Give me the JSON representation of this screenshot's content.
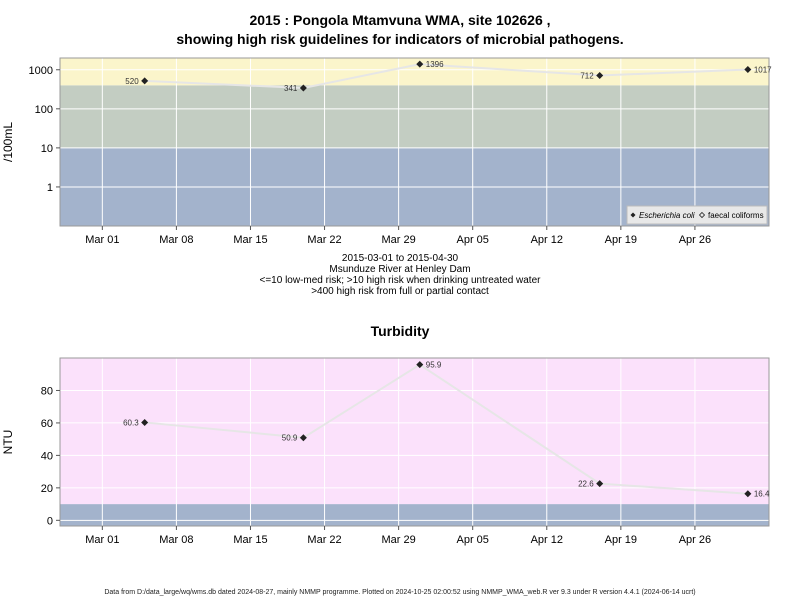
{
  "page": {
    "title_line1": "2015 : Pongola Mtamvuna WMA, site 102626 ,",
    "title_line2": "showing high risk guidelines for indicators of microbial pathogens.",
    "caption_lines": [
      "2015-03-01 to 2015-04-30",
      "Msunduze River at Henley Dam",
      "<=10 low-med risk; >10 high risk when drinking untreated water",
      ">400 high risk from full or partial contact"
    ],
    "footer": "Data from D:/data_large/wq/wms.db dated 2024-08-27, mainly NMMP programme. Plotted on 2024-10-25 02:00:52 using NMMP_WMA_web.R ver 9.3 under R version 4.4.1 (2024-06-14 ucrt)"
  },
  "chart_data": [
    {
      "type": "scatter",
      "title": "",
      "ylabel": "/100mL",
      "yscale": "log",
      "ylim": [
        0.1,
        2000
      ],
      "y_ticks": [
        1,
        10,
        100,
        1000
      ],
      "y_tick_labels": [
        "1",
        "10",
        "100",
        "1000"
      ],
      "xlim": [
        "2015-02-25",
        "2015-05-03"
      ],
      "x_ticks": [
        "2015-03-01",
        "2015-03-08",
        "2015-03-15",
        "2015-03-22",
        "2015-03-29",
        "2015-04-05",
        "2015-04-12",
        "2015-04-19",
        "2015-04-26"
      ],
      "x_tick_labels": [
        "Mar 01",
        "Mar 08",
        "Mar 15",
        "Mar 22",
        "Mar 29",
        "Apr 05",
        "Apr 12",
        "Apr 19",
        "Apr 26"
      ],
      "grid": true,
      "bands": [
        {
          "from": 0.1,
          "to": 10,
          "color": "#a3b3cc"
        },
        {
          "from": 10,
          "to": 400,
          "color": "#c3cdc2"
        },
        {
          "from": 400,
          "to": 2000,
          "color": "#fbf5cb"
        }
      ],
      "legend": {
        "position": "bottom-right",
        "entries": [
          {
            "label": "Escherichia coli",
            "marker": "diamond"
          },
          {
            "label": "faecal coliforms",
            "marker": "open-diamond"
          }
        ]
      },
      "series": [
        {
          "name": "Escherichia coli",
          "points": [
            {
              "x": "2015-03-05",
              "y": 520,
              "label": "520",
              "label_side": "left"
            },
            {
              "x": "2015-03-20",
              "y": 341,
              "label": "341",
              "label_side": "left"
            },
            {
              "x": "2015-03-31",
              "y": 1396,
              "label": "1396",
              "label_side": "right"
            },
            {
              "x": "2015-04-17",
              "y": 712,
              "label": "712",
              "label_side": "left"
            },
            {
              "x": "2015-05-01",
              "y": 1017,
              "label": "1017",
              "label_side": "right"
            }
          ]
        }
      ]
    },
    {
      "type": "scatter",
      "title": "Turbidity",
      "ylabel": "NTU",
      "yscale": "linear",
      "ylim": [
        -3.5,
        100
      ],
      "y_ticks": [
        0,
        20,
        40,
        60,
        80
      ],
      "y_tick_labels": [
        "0",
        "20",
        "40",
        "60",
        "80"
      ],
      "xlim": [
        "2015-02-25",
        "2015-05-03"
      ],
      "x_ticks": [
        "2015-03-01",
        "2015-03-08",
        "2015-03-15",
        "2015-03-22",
        "2015-03-29",
        "2015-04-05",
        "2015-04-12",
        "2015-04-19",
        "2015-04-26"
      ],
      "x_tick_labels": [
        "Mar 01",
        "Mar 08",
        "Mar 15",
        "Mar 22",
        "Mar 29",
        "Apr 05",
        "Apr 12",
        "Apr 19",
        "Apr 26"
      ],
      "grid": true,
      "bands": [
        {
          "from": -3.5,
          "to": 10,
          "color": "#a3b3cc"
        },
        {
          "from": 10,
          "to": 100,
          "color": "#fbe1fb"
        }
      ],
      "series": [
        {
          "name": "",
          "points": [
            {
              "x": "2015-03-05",
              "y": 60.3,
              "label": "60.3",
              "label_side": "left"
            },
            {
              "x": "2015-03-20",
              "y": 50.9,
              "label": "50.9",
              "label_side": "left"
            },
            {
              "x": "2015-03-31",
              "y": 95.9,
              "label": "95.9",
              "label_side": "right"
            },
            {
              "x": "2015-04-17",
              "y": 22.6,
              "label": "22.6",
              "label_side": "left"
            },
            {
              "x": "2015-05-01",
              "y": 16.4,
              "label": "16.4",
              "label_side": "right"
            }
          ]
        }
      ]
    }
  ]
}
